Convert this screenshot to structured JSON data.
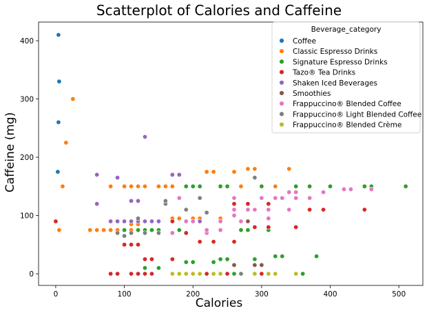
{
  "chart_data": {
    "type": "scatter",
    "title": "Scatterplot of Calories and Caffeine",
    "xlabel": "Calories",
    "ylabel": "Caffeine (mg)",
    "xlim": [
      -25,
      535
    ],
    "ylim": [
      -20,
      432
    ],
    "xticks": [
      0,
      100,
      200,
      300,
      400,
      500
    ],
    "yticks": [
      0,
      100,
      200,
      300,
      400
    ],
    "grid": false,
    "legend": {
      "title": "Beverage_category",
      "placement": "top-right"
    },
    "series": [
      {
        "name": "Coffee",
        "color": "#1f77b4",
        "points": [
          [
            3,
            175
          ],
          [
            4,
            260
          ],
          [
            4,
            410
          ],
          [
            5,
            330
          ]
        ]
      },
      {
        "name": "Classic Espresso Drinks",
        "color": "#ff7f0e",
        "points": [
          [
            5,
            75
          ],
          [
            10,
            150
          ],
          [
            15,
            225
          ],
          [
            25,
            300
          ],
          [
            50,
            75
          ],
          [
            60,
            75
          ],
          [
            70,
            75
          ],
          [
            80,
            75
          ],
          [
            80,
            150
          ],
          [
            90,
            75
          ],
          [
            100,
            75
          ],
          [
            100,
            150
          ],
          [
            110,
            75
          ],
          [
            110,
            85
          ],
          [
            110,
            150
          ],
          [
            120,
            85
          ],
          [
            120,
            150
          ],
          [
            130,
            150
          ],
          [
            130,
            75
          ],
          [
            140,
            75
          ],
          [
            150,
            150
          ],
          [
            160,
            150
          ],
          [
            170,
            150
          ],
          [
            170,
            95
          ],
          [
            180,
            95
          ],
          [
            190,
            150
          ],
          [
            200,
            95
          ],
          [
            210,
            95
          ],
          [
            220,
            175
          ],
          [
            230,
            175
          ],
          [
            240,
            95
          ],
          [
            260,
            175
          ],
          [
            270,
            150
          ],
          [
            280,
            180
          ],
          [
            290,
            180
          ],
          [
            300,
            150
          ],
          [
            320,
            150
          ],
          [
            340,
            180
          ]
        ]
      },
      {
        "name": "Signature Espresso Drinks",
        "color": "#2ca02c",
        "points": [
          [
            130,
            10
          ],
          [
            150,
            10
          ],
          [
            190,
            20
          ],
          [
            200,
            20
          ],
          [
            190,
            150
          ],
          [
            200,
            150
          ],
          [
            210,
            150
          ],
          [
            230,
            20
          ],
          [
            240,
            25
          ],
          [
            250,
            25
          ],
          [
            240,
            150
          ],
          [
            250,
            150
          ],
          [
            260,
            0
          ],
          [
            270,
            75
          ],
          [
            280,
            75
          ],
          [
            290,
            25
          ],
          [
            300,
            150
          ],
          [
            310,
            75
          ],
          [
            320,
            30
          ],
          [
            330,
            30
          ],
          [
            350,
            0
          ],
          [
            360,
            0
          ],
          [
            350,
            150
          ],
          [
            370,
            150
          ],
          [
            380,
            30
          ],
          [
            400,
            150
          ],
          [
            450,
            150
          ],
          [
            460,
            150
          ],
          [
            510,
            150
          ],
          [
            120,
            75
          ],
          [
            130,
            75
          ],
          [
            140,
            75
          ],
          [
            150,
            75
          ],
          [
            180,
            75
          ],
          [
            100,
            75
          ]
        ]
      },
      {
        "name": "Tazo® Tea Drinks",
        "color": "#d62728",
        "points": [
          [
            0,
            90
          ],
          [
            80,
            0
          ],
          [
            90,
            0
          ],
          [
            100,
            50
          ],
          [
            110,
            50
          ],
          [
            120,
            50
          ],
          [
            110,
            0
          ],
          [
            120,
            0
          ],
          [
            130,
            25
          ],
          [
            130,
            0
          ],
          [
            140,
            25
          ],
          [
            140,
            0
          ],
          [
            150,
            70
          ],
          [
            170,
            25
          ],
          [
            170,
            90
          ],
          [
            190,
            70
          ],
          [
            210,
            90
          ],
          [
            210,
            55
          ],
          [
            220,
            0
          ],
          [
            230,
            55
          ],
          [
            250,
            0
          ],
          [
            260,
            55
          ],
          [
            260,
            120
          ],
          [
            270,
            0
          ],
          [
            280,
            120
          ],
          [
            290,
            80
          ],
          [
            300,
            0
          ],
          [
            310,
            80
          ],
          [
            310,
            110
          ],
          [
            310,
            120
          ],
          [
            350,
            80
          ],
          [
            370,
            110
          ],
          [
            390,
            110
          ],
          [
            450,
            110
          ]
        ]
      },
      {
        "name": "Shaken Iced Beverages",
        "color": "#9467bd",
        "points": [
          [
            60,
            120
          ],
          [
            60,
            170
          ],
          [
            80,
            90
          ],
          [
            90,
            90
          ],
          [
            90,
            165
          ],
          [
            100,
            90
          ],
          [
            110,
            90
          ],
          [
            110,
            125
          ],
          [
            120,
            90
          ],
          [
            120,
            125
          ],
          [
            130,
            90
          ],
          [
            130,
            235
          ],
          [
            140,
            90
          ],
          [
            150,
            90
          ],
          [
            170,
            170
          ],
          [
            180,
            170
          ],
          [
            210,
            90
          ]
        ]
      },
      {
        "name": "Smoothies",
        "color": "#8c564b",
        "points": [
          [
            280,
            90
          ],
          [
            290,
            15
          ],
          [
            300,
            15
          ],
          [
            260,
            15
          ]
        ]
      },
      {
        "name": "Frappuccino® Blended Coffee",
        "color": "#e377c2",
        "points": [
          [
            150,
            70
          ],
          [
            170,
            70
          ],
          [
            190,
            90
          ],
          [
            200,
            90
          ],
          [
            220,
            70
          ],
          [
            220,
            75
          ],
          [
            240,
            75
          ],
          [
            240,
            90
          ],
          [
            260,
            100
          ],
          [
            260,
            110
          ],
          [
            260,
            130
          ],
          [
            270,
            90
          ],
          [
            280,
            110
          ],
          [
            290,
            110
          ],
          [
            300,
            130
          ],
          [
            310,
            95
          ],
          [
            310,
            110
          ],
          [
            320,
            130
          ],
          [
            330,
            130
          ],
          [
            340,
            110
          ],
          [
            340,
            140
          ],
          [
            350,
            130
          ],
          [
            350,
            140
          ],
          [
            370,
            130
          ],
          [
            390,
            140
          ],
          [
            420,
            145
          ],
          [
            430,
            145
          ],
          [
            460,
            145
          ],
          [
            180,
            130
          ]
        ]
      },
      {
        "name": "Frappuccino® Light Blended Coffee",
        "color": "#7f7f7f",
        "points": [
          [
            90,
            70
          ],
          [
            100,
            65
          ],
          [
            110,
            70
          ],
          [
            120,
            95
          ],
          [
            130,
            70
          ],
          [
            150,
            70
          ],
          [
            160,
            120
          ],
          [
            160,
            125
          ],
          [
            190,
            110
          ],
          [
            210,
            130
          ],
          [
            220,
            105
          ],
          [
            240,
            0
          ],
          [
            270,
            0
          ],
          [
            290,
            165
          ]
        ]
      },
      {
        "name": "Frappuccino® Blended Crème",
        "color": "#bcbd22",
        "points": [
          [
            170,
            0
          ],
          [
            180,
            0
          ],
          [
            190,
            0
          ],
          [
            200,
            0
          ],
          [
            210,
            0
          ],
          [
            230,
            0
          ],
          [
            240,
            0
          ],
          [
            290,
            0
          ],
          [
            310,
            0
          ],
          [
            320,
            0
          ],
          [
            350,
            0
          ]
        ]
      }
    ]
  }
}
